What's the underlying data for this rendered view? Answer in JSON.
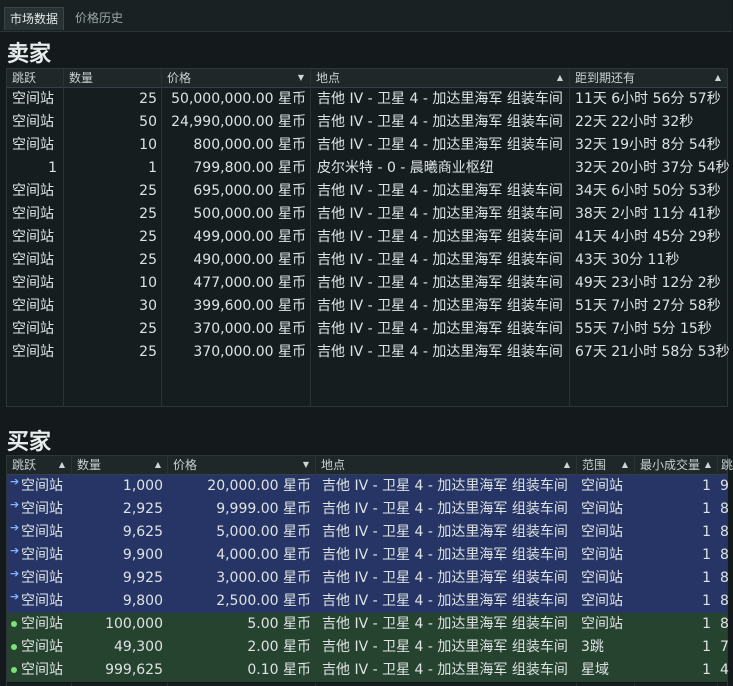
{
  "tabs": [
    {
      "label": "市场数据"
    },
    {
      "label": "价格历史"
    }
  ],
  "sellers": {
    "title": "卖家",
    "columns": [
      "跳跃",
      "数量",
      "价格",
      "地点",
      "距到期还有"
    ],
    "rows": [
      {
        "jumps": "空间站",
        "qty": "25",
        "price": "50,000,000.00 星币",
        "location": "吉他 IV - 卫星 4 - 加达里海军 组装车间",
        "expires": "11天 6小时 56分 57秒"
      },
      {
        "jumps": "空间站",
        "qty": "50",
        "price": "24,990,000.00 星币",
        "location": "吉他 IV - 卫星 4 - 加达里海军 组装车间",
        "expires": "22天 22小时 32秒"
      },
      {
        "jumps": "空间站",
        "qty": "10",
        "price": "800,000.00 星币",
        "location": "吉他 IV - 卫星 4 - 加达里海军 组装车间",
        "expires": "32天 19小时 8分 54秒"
      },
      {
        "jumps": "1",
        "qty": "1",
        "price": "799,800.00 星币",
        "location": "皮尔米特 - 0 - 晨曦商业枢纽",
        "expires": "32天 20小时 37分 54秒"
      },
      {
        "jumps": "空间站",
        "qty": "25",
        "price": "695,000.00 星币",
        "location": "吉他 IV - 卫星 4 - 加达里海军 组装车间",
        "expires": "34天 6小时 50分 53秒"
      },
      {
        "jumps": "空间站",
        "qty": "25",
        "price": "500,000.00 星币",
        "location": "吉他 IV - 卫星 4 - 加达里海军 组装车间",
        "expires": "38天 2小时 11分 41秒"
      },
      {
        "jumps": "空间站",
        "qty": "25",
        "price": "499,000.00 星币",
        "location": "吉他 IV - 卫星 4 - 加达里海军 组装车间",
        "expires": "41天 4小时 45分 29秒"
      },
      {
        "jumps": "空间站",
        "qty": "25",
        "price": "490,000.00 星币",
        "location": "吉他 IV - 卫星 4 - 加达里海军 组装车间",
        "expires": "43天 30分 11秒"
      },
      {
        "jumps": "空间站",
        "qty": "10",
        "price": "477,000.00 星币",
        "location": "吉他 IV - 卫星 4 - 加达里海军 组装车间",
        "expires": "49天 23小时 12分 2秒"
      },
      {
        "jumps": "空间站",
        "qty": "30",
        "price": "399,600.00 星币",
        "location": "吉他 IV - 卫星 4 - 加达里海军 组装车间",
        "expires": "51天 7小时 27分 58秒"
      },
      {
        "jumps": "空间站",
        "qty": "25",
        "price": "370,000.00 星币",
        "location": "吉他 IV - 卫星 4 - 加达里海军 组装车间",
        "expires": "55天 7小时 5分 15秒"
      },
      {
        "jumps": "空间站",
        "qty": "25",
        "price": "370,000.00 星币",
        "location": "吉他 IV - 卫星 4 - 加达里海军 组装车间",
        "expires": "67天 21小时 58分 53秒"
      }
    ]
  },
  "buyers": {
    "title": "买家",
    "columns": [
      "跳跃",
      "数量",
      "价格",
      "地点",
      "范围",
      "最小成交量",
      "跳"
    ],
    "rows": [
      {
        "style": "blue",
        "jumps": "空间站",
        "qty": "1,000",
        "price": "20,000.00 星币",
        "location": "吉他 IV - 卫星 4 - 加达里海军 组装车间",
        "range": "空间站",
        "minvol": "1",
        "extra": "9"
      },
      {
        "style": "blue",
        "jumps": "空间站",
        "qty": "2,925",
        "price": "9,999.00 星币",
        "location": "吉他 IV - 卫星 4 - 加达里海军 组装车间",
        "range": "空间站",
        "minvol": "1",
        "extra": "8"
      },
      {
        "style": "blue",
        "jumps": "空间站",
        "qty": "9,625",
        "price": "5,000.00 星币",
        "location": "吉他 IV - 卫星 4 - 加达里海军 组装车间",
        "range": "空间站",
        "minvol": "1",
        "extra": "8"
      },
      {
        "style": "blue",
        "jumps": "空间站",
        "qty": "9,900",
        "price": "4,000.00 星币",
        "location": "吉他 IV - 卫星 4 - 加达里海军 组装车间",
        "range": "空间站",
        "minvol": "1",
        "extra": "8"
      },
      {
        "style": "blue",
        "jumps": "空间站",
        "qty": "9,925",
        "price": "3,000.00 星币",
        "location": "吉他 IV - 卫星 4 - 加达里海军 组装车间",
        "range": "空间站",
        "minvol": "1",
        "extra": "8"
      },
      {
        "style": "blue",
        "jumps": "空间站",
        "qty": "9,800",
        "price": "2,500.00 星币",
        "location": "吉他 IV - 卫星 4 - 加达里海军 组装车间",
        "range": "空间站",
        "minvol": "1",
        "extra": "8"
      },
      {
        "style": "green",
        "jumps": "空间站",
        "qty": "100,000",
        "price": "5.00 星币",
        "location": "吉他 IV - 卫星 4 - 加达里海军 组装车间",
        "range": "空间站",
        "minvol": "1",
        "extra": "8"
      },
      {
        "style": "green",
        "jumps": "空间站",
        "qty": "49,300",
        "price": "2.00 星币",
        "location": "吉他 IV - 卫星 4 - 加达里海军 组装车间",
        "range": "3跳",
        "minvol": "1",
        "extra": "7"
      },
      {
        "style": "green",
        "jumps": "空间站",
        "qty": "999,625",
        "price": "0.10 星币",
        "location": "吉他 IV - 卫星 4 - 加达里海军 组装车间",
        "range": "星域",
        "minvol": "1",
        "extra": "4"
      }
    ]
  },
  "colors": {
    "blue_row": "#263565",
    "green_row": "#26432f",
    "jump_arrow": "#7fb4ff",
    "dot": "#7de07d"
  }
}
